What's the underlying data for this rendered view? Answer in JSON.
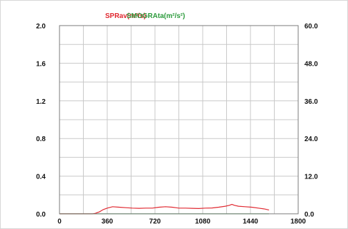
{
  "chart_data": {
    "type": "line",
    "xlim": [
      0,
      1800
    ],
    "x_ticks": [
      "0",
      "360",
      "720",
      "1080",
      "1440",
      "1800"
    ],
    "y_left_lim": [
      0,
      2.0
    ],
    "y_left_ticks": [
      "0.0",
      "0.4",
      "0.8",
      "1.2",
      "1.6",
      "2.0"
    ],
    "y_right_lim": [
      0,
      60.0
    ],
    "y_right_ticks": [
      "0.0",
      "12.0",
      "24.0",
      "36.0",
      "48.0",
      "60.0"
    ],
    "grid": true,
    "legend_position": "top",
    "series": [
      {
        "name": "SPRav(m²/s)",
        "axis": "left",
        "color": "#e0262e",
        "x": [
          0,
          100,
          200,
          250,
          270,
          300,
          330,
          360,
          400,
          450,
          500,
          550,
          600,
          650,
          700,
          750,
          800,
          850,
          900,
          950,
          1000,
          1050,
          1100,
          1150,
          1200,
          1250,
          1280,
          1300,
          1320,
          1350,
          1400,
          1450,
          1500,
          1550,
          1580
        ],
        "y": [
          0,
          0,
          0,
          0,
          0.005,
          0.02,
          0.045,
          0.06,
          0.075,
          0.07,
          0.065,
          0.06,
          0.058,
          0.06,
          0.06,
          0.07,
          0.075,
          0.07,
          0.06,
          0.06,
          0.058,
          0.056,
          0.06,
          0.062,
          0.07,
          0.08,
          0.09,
          0.1,
          0.09,
          0.08,
          0.075,
          0.07,
          0.06,
          0.05,
          0.04
        ]
      },
      {
        "name": "SMOGRAta(m²/s²)",
        "axis": "right",
        "color": "#2a9a3a",
        "x": [
          0,
          1580
        ],
        "y": [
          0,
          0
        ]
      }
    ]
  }
}
